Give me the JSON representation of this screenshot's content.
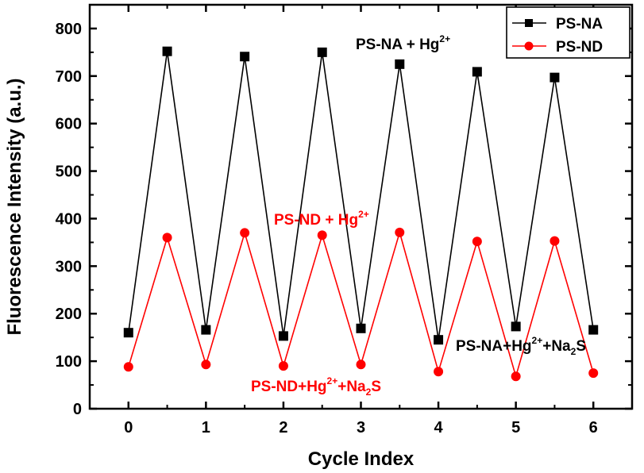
{
  "chart_data": {
    "type": "line",
    "xlabel": "Cycle Index",
    "ylabel": "Fluorescence Intensity (a.u.)",
    "xlim": [
      -0.5,
      6.5
    ],
    "ylim": [
      0,
      850
    ],
    "x_ticks": [
      0,
      1,
      2,
      3,
      4,
      5,
      6
    ],
    "y_ticks": [
      0,
      100,
      200,
      300,
      400,
      500,
      600,
      700,
      800
    ],
    "grid": false,
    "legend_position": "top-right",
    "series": [
      {
        "name": "PS-NA",
        "color": "#000000",
        "marker": "square",
        "x": [
          0,
          0.5,
          1,
          1.5,
          2,
          2.5,
          3,
          3.5,
          4,
          4.5,
          5,
          5.5,
          6
        ],
        "y": [
          160,
          752,
          166,
          741,
          153,
          750,
          169,
          725,
          145,
          709,
          173,
          697,
          166
        ]
      },
      {
        "name": "PS-ND",
        "color": "#ff0000",
        "marker": "circle",
        "x": [
          0,
          0.5,
          1,
          1.5,
          2,
          2.5,
          3,
          3.5,
          4,
          4.5,
          5,
          5.5,
          6
        ],
        "y": [
          88,
          360,
          93,
          370,
          90,
          365,
          93,
          371,
          78,
          352,
          68,
          353,
          75
        ]
      }
    ],
    "annotations": [
      {
        "id": "na_hg",
        "base": "PS-NA + Hg",
        "sup": "2+",
        "mid": "",
        "sub": "",
        "tail": "",
        "color": "#000000"
      },
      {
        "id": "nd_hg",
        "base": "PS-ND + Hg",
        "sup": "2+",
        "mid": "",
        "sub": "",
        "tail": "",
        "color": "#ff0000"
      },
      {
        "id": "na_hg_na2s",
        "base": "PS-NA+Hg",
        "sup": "2+",
        "mid": "+Na",
        "sub": "2",
        "tail": "S",
        "color": "#000000"
      },
      {
        "id": "nd_hg_na2s",
        "base": "PS-ND+Hg",
        "sup": "2+",
        "mid": "+Na",
        "sub": "2",
        "tail": "S",
        "color": "#ff0000"
      }
    ]
  }
}
